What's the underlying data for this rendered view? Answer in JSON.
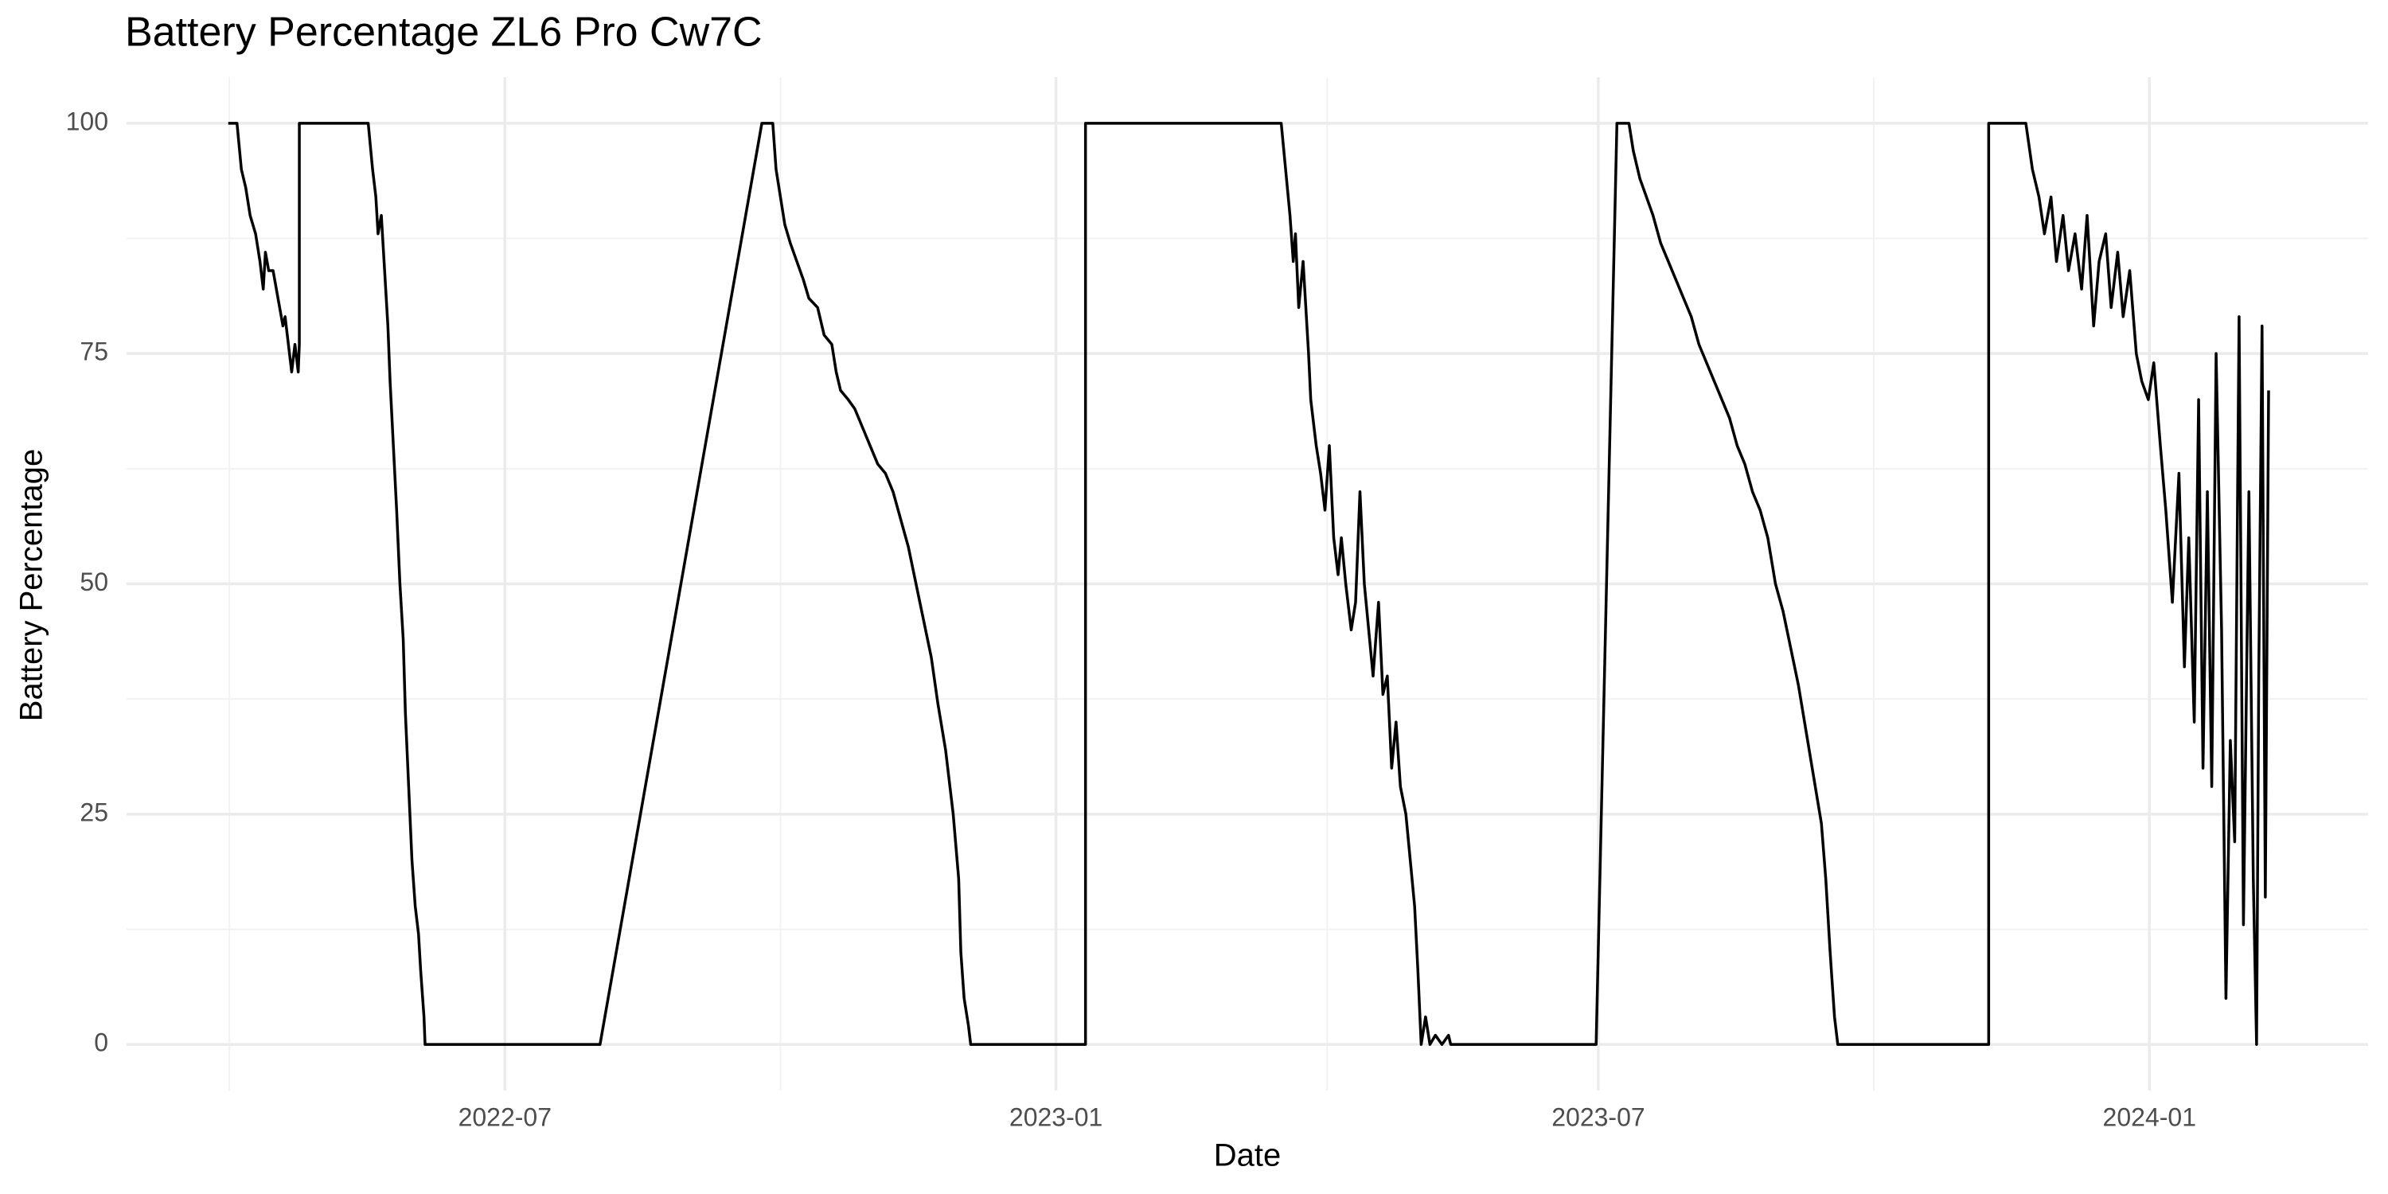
{
  "chart_data": {
    "type": "line",
    "title": "Battery Percentage ZL6 Pro Cw7C",
    "xlabel": "Date",
    "ylabel": "Battery Percentage",
    "x": [
      2022.243,
      2022.251,
      2022.255,
      2022.259,
      2022.263,
      2022.268,
      2022.272,
      2022.275,
      2022.277,
      2022.28,
      2022.284,
      2022.287,
      2022.29,
      2022.293,
      2022.295,
      2022.298,
      2022.301,
      2022.304,
      2022.307,
      2022.308,
      2022.308,
      2022.371,
      2022.375,
      2022.378,
      2022.38,
      2022.383,
      2022.386,
      2022.389,
      2022.391,
      2022.394,
      2022.397,
      2022.4,
      2022.403,
      2022.405,
      2022.408,
      2022.411,
      2022.414,
      2022.417,
      2022.419,
      2022.422,
      2022.423,
      2022.583,
      2022.731,
      2022.741,
      2022.744,
      2022.748,
      2022.752,
      2022.757,
      2022.763,
      2022.769,
      2022.774,
      2022.782,
      2022.788,
      2022.795,
      2022.799,
      2022.803,
      2022.81,
      2022.816,
      2022.823,
      2022.83,
      2022.837,
      2022.844,
      2022.851,
      2022.858,
      2022.865,
      2022.872,
      2022.879,
      2022.886,
      2022.892,
      2022.899,
      2022.906,
      2022.911,
      2022.913,
      2022.916,
      2022.92,
      2022.922,
      2023.027,
      2023.027,
      2023.206,
      2023.21,
      2023.214,
      2023.217,
      2023.219,
      2023.222,
      2023.226,
      2023.231,
      2023.233,
      2023.238,
      2023.242,
      2023.246,
      2023.25,
      2023.254,
      2023.258,
      2023.261,
      2023.265,
      2023.27,
      2023.274,
      2023.278,
      2023.282,
      2023.286,
      2023.29,
      2023.295,
      2023.299,
      2023.303,
      2023.307,
      2023.311,
      2023.315,
      2023.32,
      2023.324,
      2023.328,
      2023.331,
      2023.334,
      2023.338,
      2023.342,
      2023.347,
      2023.353,
      2023.359,
      2023.361,
      2023.494,
      2023.513,
      2023.524,
      2023.528,
      2023.534,
      2023.54,
      2023.546,
      2023.553,
      2023.56,
      2023.567,
      2023.574,
      2023.581,
      2023.588,
      2023.595,
      2023.602,
      2023.609,
      2023.616,
      2023.623,
      2023.63,
      2023.637,
      2023.644,
      2023.651,
      2023.658,
      2023.665,
      2023.672,
      2023.679,
      2023.686,
      2023.693,
      2023.7,
      2023.704,
      2023.708,
      2023.712,
      2023.715,
      2023.853,
      2023.853,
      2023.887,
      2023.893,
      2023.899,
      2023.904,
      2023.91,
      2023.915,
      2023.921,
      2023.926,
      2023.932,
      2023.938,
      2023.943,
      2023.949,
      2023.954,
      2023.96,
      2023.965,
      2023.971,
      2023.976,
      2023.982,
      2023.988,
      2023.993,
      2023.999,
      2024.004,
      2024.01,
      2024.015,
      2024.021,
      2024.027,
      2024.032,
      2024.036,
      2024.041,
      2024.045,
      2024.049,
      2024.053,
      2024.057,
      2024.061,
      2024.066,
      2024.07,
      2024.074,
      2024.078,
      2024.082,
      2024.086,
      2024.091,
      2024.095,
      2024.098,
      2024.1,
      2024.103,
      2024.106,
      2024.109
    ],
    "series": [
      {
        "color": "#000000",
        "values": [
          100,
          100,
          95,
          93,
          90,
          88,
          85,
          82,
          86,
          84,
          84,
          82,
          80,
          78,
          79,
          76,
          73,
          76,
          73,
          76,
          100,
          100,
          95,
          92,
          88,
          90,
          84,
          78,
          72,
          65,
          58,
          50,
          44,
          36,
          28,
          20,
          15,
          12,
          8,
          3,
          0,
          0,
          100,
          100,
          95,
          92,
          89,
          87,
          85,
          83,
          81,
          80,
          77,
          76,
          73,
          71,
          70,
          69,
          67,
          65,
          63,
          62,
          60,
          57,
          54,
          50,
          46,
          42,
          37,
          32,
          25,
          18,
          10,
          5,
          2,
          0,
          0,
          100,
          100,
          95,
          90,
          85,
          88,
          80,
          85,
          75,
          70,
          65,
          62,
          58,
          65,
          55,
          51,
          55,
          50,
          45,
          48,
          60,
          50,
          45,
          40,
          48,
          38,
          40,
          30,
          35,
          28,
          25,
          20,
          15,
          8,
          0,
          3,
          0,
          1,
          0,
          1,
          0,
          0,
          100,
          100,
          97,
          94,
          92,
          90,
          87,
          85,
          83,
          81,
          79,
          76,
          74,
          72,
          70,
          68,
          65,
          63,
          60,
          58,
          55,
          50,
          47,
          43,
          39,
          34,
          29,
          24,
          18,
          10,
          3,
          0,
          0,
          100,
          100,
          95,
          92,
          88,
          92,
          85,
          90,
          84,
          88,
          82,
          90,
          78,
          85,
          88,
          80,
          86,
          79,
          84,
          75,
          72,
          70,
          74,
          65,
          58,
          48,
          62,
          41,
          55,
          35,
          70,
          30,
          60,
          28,
          75,
          45,
          5,
          33,
          22,
          79,
          13,
          60,
          18,
          0,
          40,
          78,
          16,
          71
        ]
      }
    ],
    "xlim": [
      2022.15,
      2024.2
    ],
    "ylim": [
      -5,
      105
    ],
    "xticks": [
      {
        "value": 2022.496,
        "label": "2022-07"
      },
      {
        "value": 2023.0,
        "label": "2023-01"
      },
      {
        "value": 2023.496,
        "label": "2023-07"
      },
      {
        "value": 2024.0,
        "label": "2024-01"
      }
    ],
    "yticks": [
      0,
      25,
      50,
      75,
      100
    ],
    "grid": true
  }
}
